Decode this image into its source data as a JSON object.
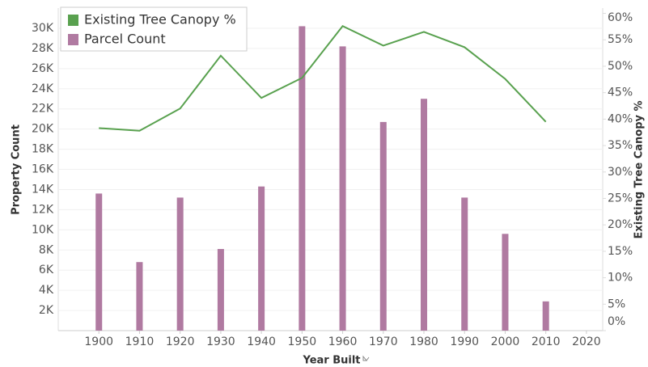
{
  "chart_data": {
    "type": "bar-line",
    "x_label": "Year Built",
    "y_label": "Property Count",
    "y2_label": "Existing Tree Canopy %",
    "x": [
      1900,
      1910,
      1920,
      1930,
      1940,
      1950,
      1960,
      1970,
      1980,
      1990,
      2000,
      2010
    ],
    "xlim": [
      1890,
      2024
    ],
    "xticks": [
      1900,
      1910,
      1920,
      1930,
      1940,
      1950,
      1960,
      1970,
      1980,
      1990,
      2000,
      2010,
      2020
    ],
    "ylim": [
      0,
      32000
    ],
    "yticks": [
      {
        "value": 2000,
        "label": "2K"
      },
      {
        "value": 4000,
        "label": "4K"
      },
      {
        "value": 6000,
        "label": "6K"
      },
      {
        "value": 8000,
        "label": "8K"
      },
      {
        "value": 10000,
        "label": "10K"
      },
      {
        "value": 12000,
        "label": "12K"
      },
      {
        "value": 14000,
        "label": "14K"
      },
      {
        "value": 16000,
        "label": "16K"
      },
      {
        "value": 18000,
        "label": "18K"
      },
      {
        "value": 20000,
        "label": "20K"
      },
      {
        "value": 22000,
        "label": "22K"
      },
      {
        "value": 24000,
        "label": "24K"
      },
      {
        "value": 26000,
        "label": "26K"
      },
      {
        "value": 28000,
        "label": "28K"
      },
      {
        "value": 30000,
        "label": "30K"
      }
    ],
    "y2lim": [
      0,
      61
    ],
    "y2ticks": [
      {
        "value": 0,
        "label": "0%"
      },
      {
        "value": 5,
        "label": "5%"
      },
      {
        "value": 10,
        "label": "10%"
      },
      {
        "value": 15,
        "label": "15%"
      },
      {
        "value": 20,
        "label": "20%"
      },
      {
        "value": 25,
        "label": "25%"
      },
      {
        "value": 30,
        "label": "30%"
      },
      {
        "value": 35,
        "label": "35%"
      },
      {
        "value": 40,
        "label": "40%"
      },
      {
        "value": 45,
        "label": "45%"
      },
      {
        "value": 50,
        "label": "50%"
      },
      {
        "value": 55,
        "label": "55%"
      },
      {
        "value": 60,
        "label": "60%"
      }
    ],
    "grid": true,
    "legend": "top-left",
    "series": [
      {
        "name": "Existing Tree Canopy %",
        "color": "#59a14f",
        "kind": "line",
        "axis": "y2",
        "values": [
          38.3,
          37.8,
          42,
          52,
          44,
          47.8,
          57.6,
          53.9,
          56.5,
          53.6,
          47.6,
          39.5
        ]
      },
      {
        "name": "Parcel Count",
        "color": "#b07aa1",
        "kind": "bar",
        "values": [
          13600,
          6800,
          13200,
          8100,
          14300,
          30200,
          28200,
          20700,
          23000,
          13200,
          9600,
          2900
        ]
      }
    ]
  }
}
